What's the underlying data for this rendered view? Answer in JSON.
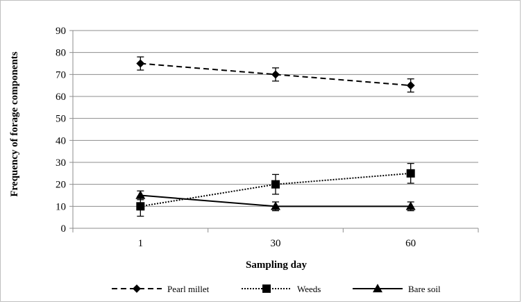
{
  "chart_data": {
    "type": "line",
    "title": "",
    "xlabel": "Sampling day",
    "ylabel": "Frequency of forage components",
    "categories": [
      "1",
      "30",
      "60"
    ],
    "ylim": [
      0,
      90
    ],
    "yticks": [
      0,
      10,
      20,
      30,
      40,
      50,
      60,
      70,
      80,
      90
    ],
    "grid": true,
    "legend_position": "bottom",
    "series": [
      {
        "name": "Pearl millet",
        "values": [
          75,
          70,
          65
        ],
        "errors": [
          3,
          3,
          3
        ],
        "marker": "diamond",
        "line_style": "dashed",
        "color": "#000000"
      },
      {
        "name": "Weeds",
        "values": [
          10,
          20,
          25
        ],
        "errors": [
          4.5,
          4.5,
          4.5
        ],
        "marker": "square",
        "line_style": "dotted",
        "color": "#000000"
      },
      {
        "name": "Bare soil",
        "values": [
          15,
          10,
          10
        ],
        "errors": [
          2,
          2,
          2
        ],
        "marker": "triangle",
        "line_style": "solid",
        "color": "#000000"
      }
    ]
  }
}
